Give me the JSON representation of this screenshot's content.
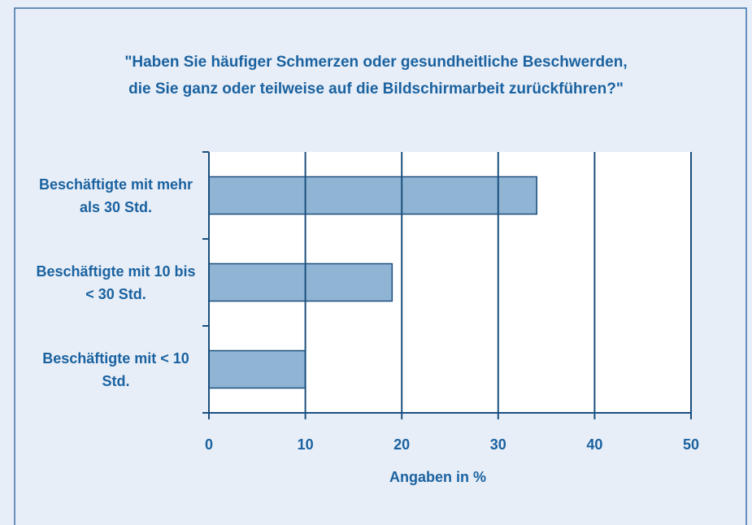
{
  "chart_data": {
    "type": "bar",
    "orientation": "horizontal",
    "title": "\"Haben Sie häufiger Schmerzen oder gesundheitliche Beschwerden, die Sie ganz oder teilweise auf die Bildschirmarbeit zurückführen?\"",
    "categories": [
      "Beschäftigte mit mehr als 30 Std.",
      "Beschäftigte mit 10 bis < 30 Std.",
      "Beschäftigte mit < 10 Std."
    ],
    "values": [
      34,
      19,
      10
    ],
    "color": "#8fb4d4",
    "xlim": [
      0,
      50
    ],
    "xticks": [
      0,
      10,
      20,
      30,
      40,
      50
    ],
    "grid": true,
    "xlabel": "Angaben in %"
  }
}
